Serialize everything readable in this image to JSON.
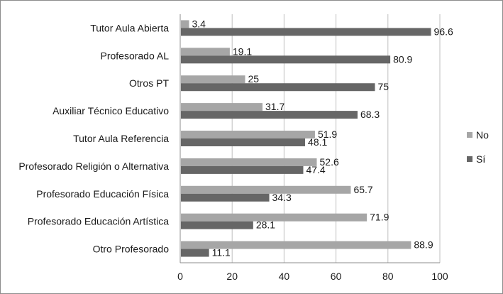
{
  "chart_data": {
    "type": "bar",
    "orientation": "horizontal",
    "categories": [
      "Tutor Aula Abierta",
      "Profesorado AL",
      "Otros PT",
      "Auxiliar Técnico Educativo",
      "Tutor Aula Referencia",
      "Profesorado Religión o Alternativa",
      "Profesorado Educación Física",
      "Profesorado Educación Artística",
      "Otro Profesorado"
    ],
    "series": [
      {
        "name": "No",
        "color": "#a6a6a6",
        "values": [
          3.4,
          19.1,
          25,
          31.7,
          51.9,
          52.6,
          65.7,
          71.9,
          88.9
        ],
        "labels": [
          "3.4",
          "19.1",
          "25",
          "31.7",
          "51.9",
          "52.6",
          "65.7",
          "71.9",
          "88.9"
        ]
      },
      {
        "name": "Sí",
        "color": "#666666",
        "values": [
          96.6,
          80.9,
          75,
          68.3,
          48.1,
          47.4,
          34.3,
          28.1,
          11.1
        ],
        "labels": [
          "96.6",
          "80.9",
          "75",
          "68.3",
          "48.1",
          "47.4",
          "34.3",
          "28.1",
          "11.1"
        ]
      }
    ],
    "xlim": [
      0,
      100
    ],
    "xticks": [
      0,
      20,
      40,
      60,
      80,
      100
    ],
    "xtick_labels": [
      "0",
      "20",
      "40",
      "60",
      "80",
      "100"
    ],
    "grid": true,
    "legend": {
      "placement": "right"
    },
    "title": "",
    "xlabel": "",
    "ylabel": ""
  }
}
